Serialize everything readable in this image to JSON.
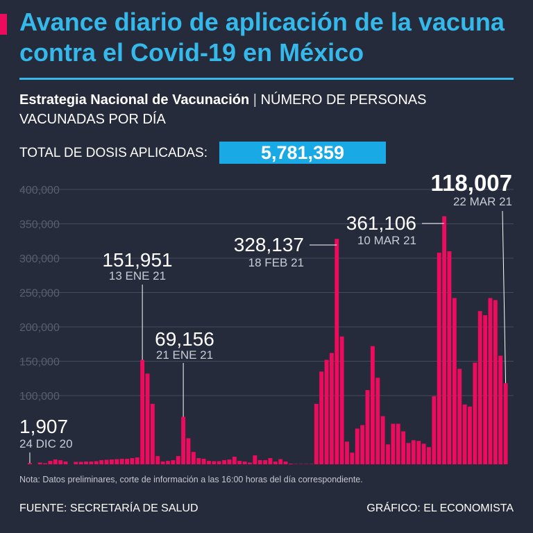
{
  "header": {
    "title": "Avance diario de aplicación de la vacuna contra el Covid-19 en México",
    "subtitle_bold": "Estrategia Nacional de Vacunación",
    "subtitle_separator": "|",
    "subtitle_rest": "NÚMERO DE PERSONAS VACUNADAS POR DÍA",
    "total_label": "TOTAL DE DOSIS APLICADAS:",
    "total_value": "5,781,359"
  },
  "footer": {
    "note": "Nota: Datos preliminares, corte de información a las 16:00 horas del día correspondiente.",
    "source": "FUENTE: SECRETARÍA DE SALUD",
    "credit": "GRÁFICO: EL ECONOMISTA"
  },
  "colors": {
    "background": "#262b3b",
    "title": "#35b8ea",
    "bar": "#ec0b5d",
    "total_box": "#19a9e4",
    "grid": "#454b5d"
  },
  "chart_data": {
    "type": "bar",
    "title": "Número de personas vacunadas por día",
    "xlabel": "",
    "ylabel": "",
    "ylim": [
      0,
      400000
    ],
    "yticks": [
      100000,
      150000,
      200000,
      250000,
      300000,
      350000,
      400000
    ],
    "ytick_labels": [
      "100,000",
      "150,000",
      "200,000",
      "250,000",
      "300,000",
      "350,000",
      "400,000"
    ],
    "x_start": "24 DIC 20",
    "values": [
      1907,
      0,
      2500,
      1500,
      5000,
      7000,
      6000,
      4000,
      0,
      3500,
      3500,
      4000,
      4000,
      4500,
      6000,
      6500,
      7000,
      7500,
      8000,
      8000,
      9000,
      10000,
      151951,
      132000,
      88000,
      12000,
      4000,
      5000,
      6000,
      12000,
      69156,
      38000,
      18000,
      9000,
      8000,
      5000,
      4500,
      4500,
      6000,
      7000,
      11000,
      5000,
      4000,
      2500,
      13000,
      6000,
      6000,
      9000,
      4000,
      7500,
      4000,
      1000,
      500,
      500,
      500,
      500,
      88000,
      135000,
      152000,
      162000,
      328137,
      186000,
      33000,
      17000,
      52000,
      57000,
      108000,
      172000,
      126000,
      70000,
      29000,
      59000,
      59000,
      48000,
      31000,
      35000,
      34000,
      30000,
      25000,
      99000,
      308000,
      361106,
      310000,
      242000,
      139000,
      87000,
      84000,
      148000,
      223000,
      217000,
      242000,
      239000,
      158000,
      118007
    ],
    "annotations": [
      {
        "index": 0,
        "value": "1,907",
        "date": "24 DIC 20"
      },
      {
        "index": 22,
        "value": "151,951",
        "date": "13 ENE 21"
      },
      {
        "index": 30,
        "value": "69,156",
        "date": "21 ENE 21"
      },
      {
        "index": 60,
        "value": "328,137",
        "date": "18 FEB 21"
      },
      {
        "index": 81,
        "value": "361,106",
        "date": "10 MAR 21"
      },
      {
        "index": 93,
        "value": "118,007",
        "date": "22 MAR 21"
      }
    ]
  }
}
